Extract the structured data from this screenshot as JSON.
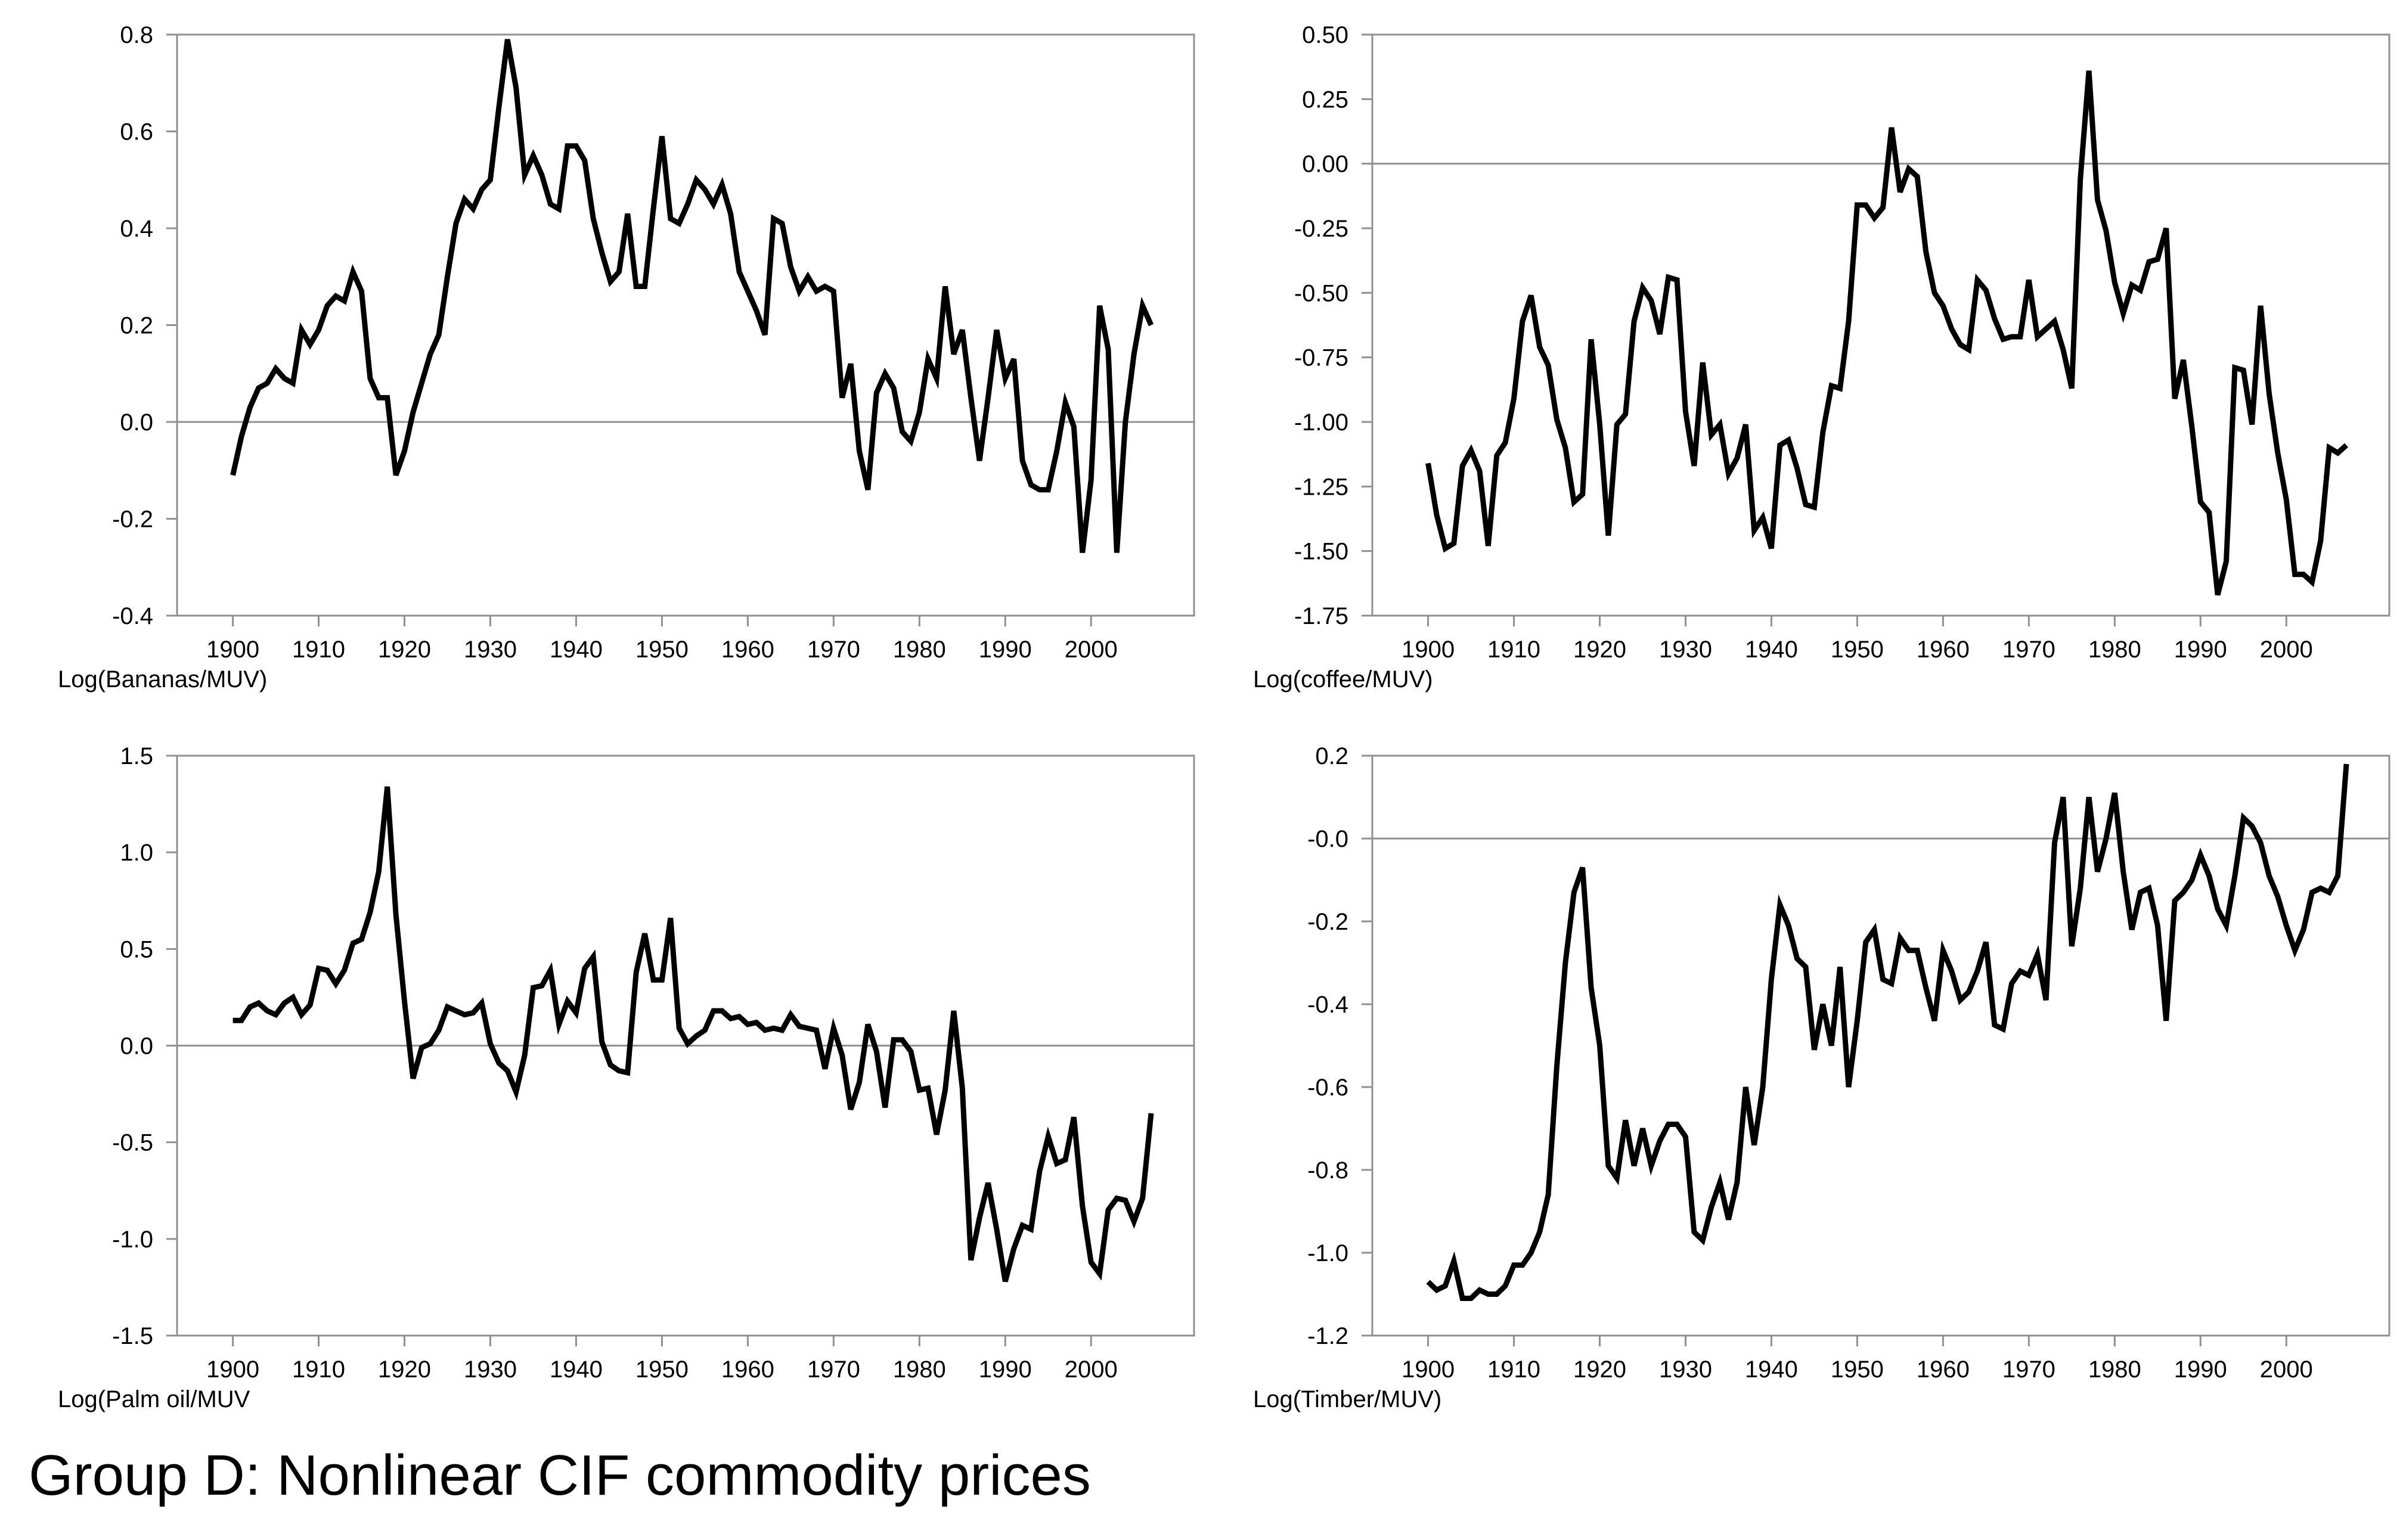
{
  "figure_title": "Group D: Nonlinear CIF commodity prices",
  "colors": {
    "line": "#000000",
    "frame": "#909090",
    "zero_line": "#909090",
    "background": "#ffffff"
  },
  "chart_data": [
    {
      "type": "line",
      "title": "",
      "xlabel": "Log(Bananas/MUV)",
      "ylabel": "",
      "xlim": [
        1893.5,
        2012
      ],
      "ylim": [
        -0.4,
        0.8
      ],
      "xticks": [
        1900,
        1910,
        1920,
        1930,
        1940,
        1950,
        1960,
        1970,
        1980,
        1990,
        2000
      ],
      "yticks": [
        -0.4,
        -0.2,
        0.0,
        0.2,
        0.4,
        0.6,
        0.8
      ],
      "ytick_labels": [
        "-0.4",
        "-0.2",
        "0.0",
        "0.2",
        "0.4",
        "0.6",
        "0.8"
      ],
      "zero_line": 0,
      "grid": false,
      "x_start": 1900,
      "values": [
        -0.11,
        -0.03,
        0.03,
        0.07,
        0.08,
        0.11,
        0.09,
        0.08,
        0.19,
        0.16,
        0.19,
        0.24,
        0.26,
        0.25,
        0.31,
        0.27,
        0.09,
        0.05,
        0.05,
        -0.11,
        -0.06,
        0.02,
        0.08,
        0.14,
        0.18,
        0.3,
        0.41,
        0.46,
        0.44,
        0.48,
        0.5,
        0.65,
        0.79,
        0.69,
        0.51,
        0.55,
        0.51,
        0.45,
        0.44,
        0.57,
        0.57,
        0.54,
        0.42,
        0.35,
        0.29,
        0.31,
        0.43,
        0.28,
        0.28,
        0.44,
        0.59,
        0.42,
        0.41,
        0.45,
        0.5,
        0.48,
        0.45,
        0.49,
        0.43,
        0.31,
        0.27,
        0.23,
        0.18,
        0.42,
        0.41,
        0.32,
        0.27,
        0.3,
        0.27,
        0.28,
        0.27,
        0.05,
        0.12,
        -0.06,
        -0.14,
        0.06,
        0.1,
        0.07,
        -0.02,
        -0.04,
        0.02,
        0.13,
        0.09,
        0.28,
        0.14,
        0.19,
        0.05,
        -0.08,
        0.05,
        0.19,
        0.09,
        0.13,
        -0.08,
        -0.13,
        -0.14,
        -0.14,
        -0.06,
        0.04,
        -0.01,
        -0.27,
        -0.12,
        0.24,
        0.15,
        -0.27,
        0.0,
        0.14,
        0.24,
        0.2
      ]
    },
    {
      "type": "line",
      "title": "",
      "xlabel": "Log(coffee/MUV)",
      "ylabel": "",
      "xlim": [
        1893.5,
        2012
      ],
      "ylim": [
        -1.75,
        0.5
      ],
      "xticks": [
        1900,
        1910,
        1920,
        1930,
        1940,
        1950,
        1960,
        1970,
        1980,
        1990,
        2000
      ],
      "yticks": [
        -1.75,
        -1.5,
        -1.25,
        -1.0,
        -0.75,
        -0.5,
        -0.25,
        0.0,
        0.25,
        0.5
      ],
      "ytick_labels": [
        "-1.75",
        "-1.50",
        "-1.25",
        "-1.00",
        "-0.75",
        "-0.50",
        "-0.25",
        "0.00",
        "0.25",
        "0.50"
      ],
      "zero_line": 0,
      "grid": false,
      "x_start": 1900,
      "values": [
        -1.16,
        -1.36,
        -1.49,
        -1.47,
        -1.17,
        -1.11,
        -1.19,
        -1.48,
        -1.13,
        -1.08,
        -0.91,
        -0.61,
        -0.51,
        -0.71,
        -0.78,
        -0.99,
        -1.1,
        -1.31,
        -1.28,
        -0.68,
        -1.01,
        -1.44,
        -1.01,
        -0.97,
        -0.61,
        -0.48,
        -0.53,
        -0.66,
        -0.44,
        -0.45,
        -0.96,
        -1.17,
        -0.77,
        -1.05,
        -1.01,
        -1.2,
        -1.14,
        -1.01,
        -1.42,
        -1.37,
        -1.49,
        -1.09,
        -1.07,
        -1.18,
        -1.32,
        -1.33,
        -1.04,
        -0.86,
        -0.87,
        -0.61,
        -0.16,
        -0.16,
        -0.21,
        -0.17,
        0.14,
        -0.11,
        -0.02,
        -0.05,
        -0.34,
        -0.5,
        -0.55,
        -0.64,
        -0.7,
        -0.72,
        -0.45,
        -0.49,
        -0.6,
        -0.68,
        -0.67,
        -0.67,
        -0.45,
        -0.67,
        -0.64,
        -0.61,
        -0.72,
        -0.87,
        -0.06,
        0.36,
        -0.14,
        -0.26,
        -0.46,
        -0.58,
        -0.47,
        -0.49,
        -0.38,
        -0.37,
        -0.25,
        -0.91,
        -0.76,
        -1.02,
        -1.31,
        -1.35,
        -1.67,
        -1.54,
        -0.79,
        -0.8,
        -1.01,
        -0.55,
        -0.89,
        -1.12,
        -1.3,
        -1.59,
        -1.59,
        -1.62,
        -1.46,
        -1.1,
        -1.12,
        -1.09
      ]
    },
    {
      "type": "line",
      "title": "",
      "xlabel": "Log(Palm oil/MUV",
      "ylabel": "",
      "xlim": [
        1893.5,
        2012
      ],
      "ylim": [
        -1.5,
        1.5
      ],
      "xticks": [
        1900,
        1910,
        1920,
        1930,
        1940,
        1950,
        1960,
        1970,
        1980,
        1990,
        2000
      ],
      "yticks": [
        -1.5,
        -1.0,
        -0.5,
        0.0,
        0.5,
        1.0,
        1.5
      ],
      "ytick_labels": [
        "-1.5",
        "-1.0",
        "-0.5",
        "0.0",
        "0.5",
        "1.0",
        "1.5"
      ],
      "zero_line": 0,
      "grid": false,
      "x_start": 1900,
      "values": [
        0.13,
        0.13,
        0.2,
        0.22,
        0.18,
        0.16,
        0.22,
        0.25,
        0.16,
        0.21,
        0.4,
        0.39,
        0.32,
        0.39,
        0.53,
        0.55,
        0.69,
        0.9,
        1.34,
        0.68,
        0.23,
        -0.17,
        -0.01,
        0.01,
        0.08,
        0.2,
        0.18,
        0.16,
        0.17,
        0.22,
        0.01,
        -0.09,
        -0.13,
        -0.24,
        -0.05,
        0.3,
        0.31,
        0.39,
        0.11,
        0.23,
        0.17,
        0.4,
        0.46,
        0.02,
        -0.1,
        -0.13,
        -0.14,
        0.38,
        0.58,
        0.34,
        0.34,
        0.66,
        0.09,
        0.01,
        0.05,
        0.08,
        0.18,
        0.18,
        0.14,
        0.15,
        0.11,
        0.12,
        0.08,
        0.09,
        0.08,
        0.16,
        0.1,
        0.09,
        0.08,
        -0.12,
        0.09,
        -0.05,
        -0.33,
        -0.19,
        0.11,
        -0.03,
        -0.32,
        0.03,
        0.03,
        -0.03,
        -0.23,
        -0.22,
        -0.46,
        -0.23,
        0.18,
        -0.22,
        -1.11,
        -0.89,
        -0.71,
        -0.95,
        -1.22,
        -1.05,
        -0.93,
        -0.95,
        -0.65,
        -0.47,
        -0.61,
        -0.59,
        -0.37,
        -0.83,
        -1.12,
        -1.18,
        -0.85,
        -0.79,
        -0.8,
        -0.91,
        -0.79,
        -0.35
      ]
    },
    {
      "type": "line",
      "title": "",
      "xlabel": "Log(Timber/MUV)",
      "ylabel": "",
      "xlim": [
        1893.5,
        2012
      ],
      "ylim": [
        -1.2,
        0.2
      ],
      "xticks": [
        1900,
        1910,
        1920,
        1930,
        1940,
        1950,
        1960,
        1970,
        1980,
        1990,
        2000
      ],
      "yticks": [
        -1.2,
        -1.0,
        -0.8,
        -0.6,
        -0.4,
        -0.2,
        0.0,
        0.2
      ],
      "ytick_labels": [
        "-1.2",
        "-1.0",
        "-0.8",
        "-0.6",
        "-0.4",
        "-0.2",
        "-0.0",
        "0.2"
      ],
      "zero_line": 0,
      "grid": false,
      "x_start": 1900,
      "values": [
        -1.07,
        -1.09,
        -1.08,
        -1.02,
        -1.11,
        -1.11,
        -1.09,
        -1.1,
        -1.1,
        -1.08,
        -1.03,
        -1.03,
        -1.0,
        -0.95,
        -0.86,
        -0.55,
        -0.3,
        -0.13,
        -0.07,
        -0.36,
        -0.5,
        -0.79,
        -0.82,
        -0.68,
        -0.79,
        -0.7,
        -0.79,
        -0.73,
        -0.69,
        -0.69,
        -0.72,
        -0.95,
        -0.97,
        -0.89,
        -0.83,
        -0.92,
        -0.83,
        -0.6,
        -0.74,
        -0.6,
        -0.34,
        -0.16,
        -0.21,
        -0.29,
        -0.31,
        -0.51,
        -0.4,
        -0.5,
        -0.31,
        -0.6,
        -0.44,
        -0.25,
        -0.22,
        -0.34,
        -0.35,
        -0.24,
        -0.27,
        -0.27,
        -0.36,
        -0.44,
        -0.27,
        -0.32,
        -0.39,
        -0.37,
        -0.32,
        -0.25,
        -0.45,
        -0.46,
        -0.35,
        -0.32,
        -0.33,
        -0.28,
        -0.39,
        -0.01,
        0.1,
        -0.26,
        -0.12,
        0.1,
        -0.08,
        0.0,
        0.11,
        -0.08,
        -0.22,
        -0.13,
        -0.12,
        -0.21,
        -0.44,
        -0.15,
        -0.13,
        -0.1,
        -0.04,
        -0.09,
        -0.17,
        -0.21,
        -0.09,
        0.05,
        0.03,
        -0.01,
        -0.09,
        -0.14,
        -0.21,
        -0.27,
        -0.22,
        -0.13,
        -0.12,
        -0.13,
        -0.09,
        0.18
      ]
    }
  ]
}
